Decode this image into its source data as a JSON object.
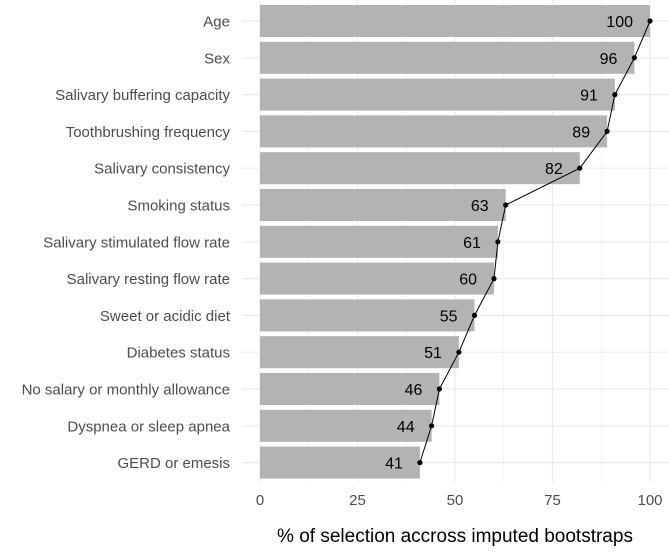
{
  "chart_data": {
    "type": "bar",
    "orientation": "horizontal",
    "title": "",
    "xlabel": "% of selection accross imputed bootstraps",
    "ylabel": "",
    "xlim": [
      0,
      100
    ],
    "x_ticks": [
      "0",
      "25",
      "50",
      "75",
      "100"
    ],
    "grid": true,
    "categories": [
      "Age",
      "Sex",
      "Salivary buffering capacity",
      "Toothbrushing frequency",
      "Salivary consistency",
      "Smoking status",
      "Salivary stimulated flow rate",
      "Salivary resting flow rate",
      "Sweet or acidic diet",
      "Diabetes status",
      "No salary or monthly allowance",
      "Dyspnea or sleep apnea",
      "GERD or emesis"
    ],
    "values": [
      100,
      96,
      91,
      89,
      82,
      63,
      61,
      60,
      55,
      51,
      46,
      44,
      41
    ],
    "value_labels": [
      "100",
      "96",
      "91",
      "89",
      "82",
      "63",
      "61",
      "60",
      "55",
      "51",
      "46",
      "44",
      "41"
    ],
    "overlay": "line-with-points",
    "colors": {
      "bar": "#b3b3b3",
      "line": "#000000",
      "grid": "#ebebeb",
      "text": "#4d4d4d"
    }
  }
}
